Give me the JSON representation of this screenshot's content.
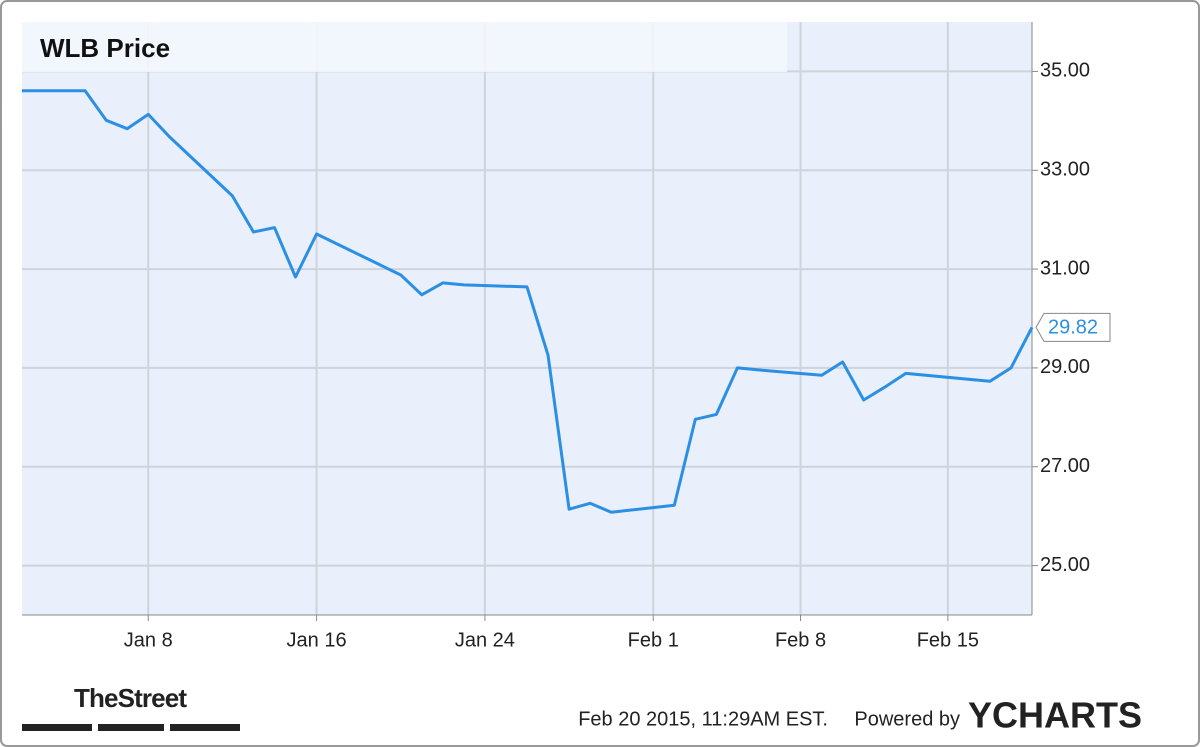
{
  "chart_data": {
    "type": "line",
    "title": "WLB Price",
    "x": [
      "2015-01-02",
      "2015-01-05",
      "2015-01-06",
      "2015-01-07",
      "2015-01-08",
      "2015-01-09",
      "2015-01-12",
      "2015-01-13",
      "2015-01-14",
      "2015-01-15",
      "2015-01-16",
      "2015-01-20",
      "2015-01-21",
      "2015-01-22",
      "2015-01-23",
      "2015-01-26",
      "2015-01-27",
      "2015-01-28",
      "2015-01-29",
      "2015-01-30",
      "2015-02-02",
      "2015-02-03",
      "2015-02-04",
      "2015-02-05",
      "2015-02-06",
      "2015-02-09",
      "2015-02-10",
      "2015-02-11",
      "2015-02-12",
      "2015-02-13",
      "2015-02-17",
      "2015-02-18",
      "2015-02-19"
    ],
    "series": [
      {
        "name": "WLB Price",
        "color": "#2b8fe3",
        "values": [
          34.61,
          34.61,
          34.01,
          33.84,
          34.13,
          33.68,
          32.48,
          31.75,
          31.84,
          30.84,
          31.71,
          30.88,
          30.48,
          30.72,
          30.68,
          30.64,
          29.26,
          26.14,
          26.26,
          26.08,
          26.22,
          27.96,
          28.06,
          29.0,
          28.96,
          28.85,
          29.12,
          28.35,
          28.61,
          28.89,
          28.73,
          29.0,
          29.82
        ]
      }
    ],
    "xlim": [
      "2015-01-02",
      "2015-02-19"
    ],
    "xticks": [
      {
        "value": "2015-01-08",
        "label": "Jan 8"
      },
      {
        "value": "2015-01-16",
        "label": "Jan 16"
      },
      {
        "value": "2015-01-24",
        "label": "Jan 24"
      },
      {
        "value": "2015-02-01",
        "label": "Feb 1"
      },
      {
        "value": "2015-02-08",
        "label": "Feb 8"
      },
      {
        "value": "2015-02-15",
        "label": "Feb 15"
      }
    ],
    "ylim": [
      24,
      36
    ],
    "yticks": [
      {
        "value": 25,
        "label": "25.00"
      },
      {
        "value": 27,
        "label": "27.00"
      },
      {
        "value": 29,
        "label": "29.00"
      },
      {
        "value": 31,
        "label": "31.00"
      },
      {
        "value": 33,
        "label": "33.00"
      },
      {
        "value": 35,
        "label": "35.00"
      }
    ],
    "grid": true
  },
  "footer": {
    "source": "TheStreet",
    "timestamp": "Feb 20 2015, 11:29AM EST.",
    "powered": "Powered by",
    "brand": "YCHARTS"
  }
}
